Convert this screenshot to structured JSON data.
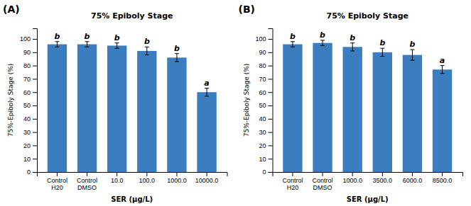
{
  "chart_data": [
    {
      "type": "bar",
      "title": "75% Epiboly Stage",
      "panel_label": "(A)",
      "categories": [
        "Control\nH20",
        "Control\nDMSO",
        "10.0",
        "100.0",
        "1000.0",
        "10000.0"
      ],
      "values": [
        96,
        96,
        95,
        91,
        86,
        60
      ],
      "errors": [
        2,
        2,
        2,
        3,
        3,
        3
      ],
      "letters": [
        "b",
        "b",
        "b",
        "b",
        "b",
        "a"
      ],
      "color": "#3A7EC0",
      "ylabel": "75%-Epiboly Stage (%)",
      "xlabel": "SER (μg/L)",
      "ylim": [
        0,
        108
      ],
      "yticks": [
        0,
        10,
        20,
        30,
        40,
        50,
        60,
        70,
        80,
        90,
        100
      ],
      "grid": false
    },
    {
      "type": "bar",
      "title": "75% Epiboly Stage",
      "panel_label": "(B)",
      "categories": [
        "Control\nH20",
        "Control\nDMSO",
        "1000.0",
        "3500.0",
        "6000.0",
        "8500.0"
      ],
      "values": [
        96,
        97,
        94,
        90,
        88,
        77
      ],
      "errors": [
        2,
        2,
        3,
        3,
        4,
        3
      ],
      "letters": [
        "b",
        "b",
        "b",
        "b",
        "b",
        "a"
      ],
      "color": "#3A7EC0",
      "ylabel": "75%-Epiboly Stage (%)",
      "xlabel": "SER (μg/L)",
      "ylim": [
        0,
        108
      ],
      "yticks": [
        0,
        10,
        20,
        30,
        40,
        50,
        60,
        70,
        80,
        90,
        100
      ],
      "grid": false
    }
  ]
}
